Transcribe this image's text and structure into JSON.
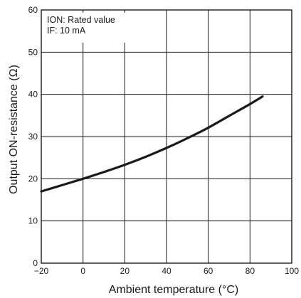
{
  "chart_data": {
    "type": "line",
    "title": "",
    "xlabel": "Ambient temperature (°C)",
    "ylabel": "Output ON-resistance (Ω)",
    "xlim": [
      -20,
      100
    ],
    "ylim": [
      0,
      60
    ],
    "xticks": [
      -20,
      0,
      20,
      40,
      60,
      80,
      100
    ],
    "xtick_labels": [
      "−20",
      "0",
      "20",
      "40",
      "60",
      "80",
      "100"
    ],
    "yticks": [
      0,
      10,
      20,
      30,
      40,
      50,
      60
    ],
    "ytick_labels": [
      "0",
      "10",
      "20",
      "30",
      "40",
      "50",
      "60"
    ],
    "grid": true,
    "annotations": [
      "ION: Rated value",
      "IF: 10 mA"
    ],
    "series": [
      {
        "x": [
          -20,
          -10,
          0,
          10,
          20,
          30,
          40,
          50,
          60,
          70,
          80,
          86
        ],
        "y": [
          17.0,
          18.5,
          20.0,
          21.6,
          23.3,
          25.2,
          27.3,
          29.6,
          32.1,
          34.9,
          37.7,
          39.5
        ]
      }
    ]
  }
}
